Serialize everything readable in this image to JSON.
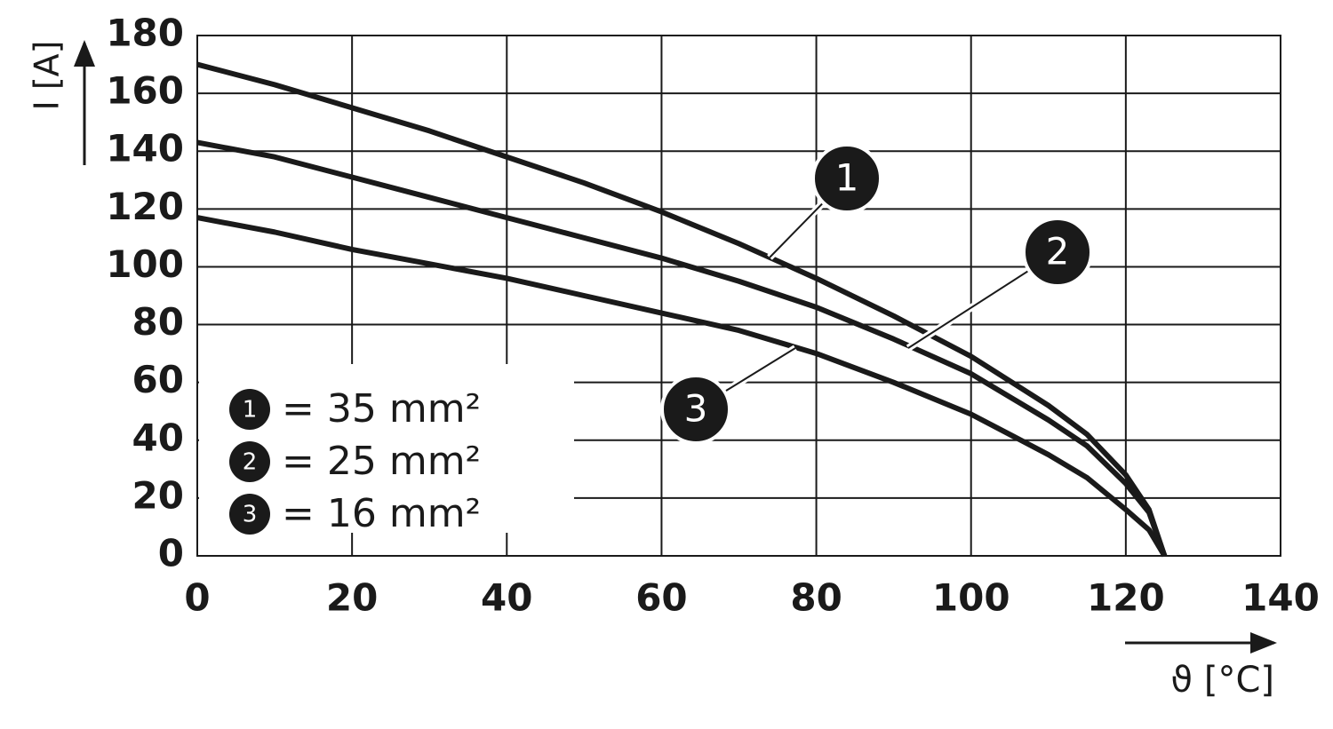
{
  "chart_data": {
    "type": "line",
    "y_label": "I [A]",
    "x_label": "ϑ [°C]",
    "xlim": [
      0,
      140
    ],
    "xticks": [
      0,
      20,
      40,
      60,
      80,
      100,
      120,
      140
    ],
    "ylim": [
      0,
      180
    ],
    "yticks": [
      0,
      20,
      40,
      60,
      80,
      100,
      120,
      140,
      160,
      180
    ],
    "grid": true,
    "legend": "lower left",
    "x": [
      0,
      10,
      20,
      30,
      40,
      50,
      60,
      70,
      80,
      90,
      100,
      110,
      115,
      120,
      123,
      125
    ],
    "series": [
      {
        "label": "1",
        "name": "= 35 mm²",
        "color": "#1a1a1a",
        "values": [
          170,
          163,
          155,
          147,
          138,
          129,
          119,
          108,
          96,
          83,
          69,
          52,
          42,
          28,
          16,
          0
        ]
      },
      {
        "label": "2",
        "name": "= 25 mm²",
        "color": "#1a1a1a",
        "values": [
          143,
          138,
          131,
          124,
          117,
          110,
          103,
          95,
          86,
          75,
          63,
          47,
          38,
          25,
          15,
          0
        ]
      },
      {
        "label": "3",
        "name": "= 16 mm²",
        "color": "#1a1a1a",
        "values": [
          117,
          112,
          106,
          101,
          96,
          90,
          84,
          78,
          70,
          60,
          49,
          35,
          27,
          16,
          9,
          0
        ]
      }
    ]
  }
}
